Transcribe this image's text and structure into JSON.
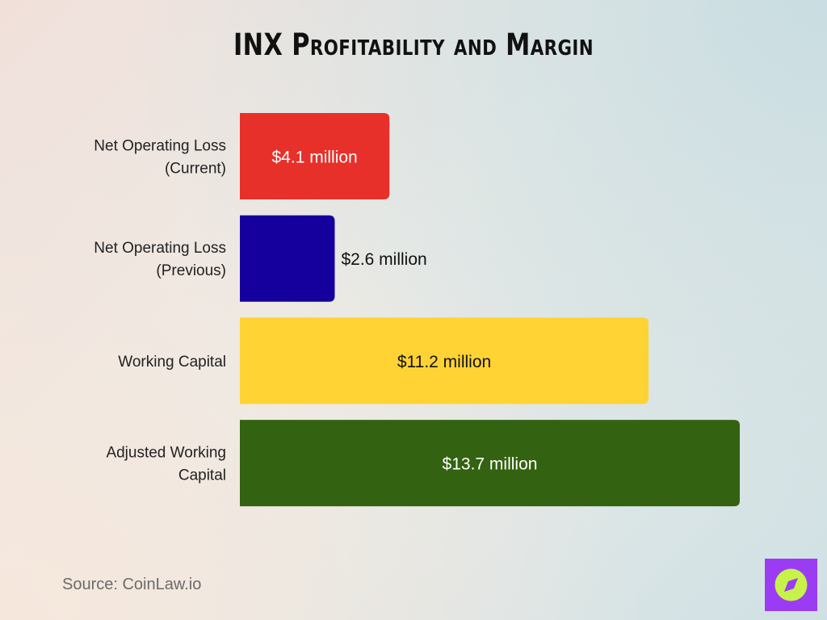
{
  "title": "INX Profitability and Margin",
  "source": "Source: CoinLaw.io",
  "logo": {
    "icon": "compass-logo-icon",
    "bg_color": "#9b3cf5",
    "fg_color": "#c6f24a"
  },
  "chart_data": {
    "type": "bar",
    "orientation": "horizontal",
    "title": "INX Profitability and Margin",
    "xlabel": "",
    "ylabel": "",
    "grid": false,
    "legend": "none",
    "xlim": [
      0,
      13.7
    ],
    "categories": [
      [
        "Net Operating Loss",
        "(Current)"
      ],
      [
        "Net Operating Loss",
        "(Previous)"
      ],
      [
        "Working Capital"
      ],
      [
        "Adjusted Working",
        "Capital"
      ]
    ],
    "values": [
      4.1,
      2.6,
      11.2,
      13.7
    ],
    "labels": [
      "$4.1 million",
      "$2.6 million",
      "$11.2 million",
      "$13.7 million"
    ],
    "colors": [
      "#e8302a",
      "#15009e",
      "#ffd334",
      "#336211"
    ],
    "label_colors": [
      "#ffffff",
      "#111111",
      "#111111",
      "#ffffff"
    ],
    "label_inside": [
      true,
      false,
      true,
      true
    ]
  }
}
